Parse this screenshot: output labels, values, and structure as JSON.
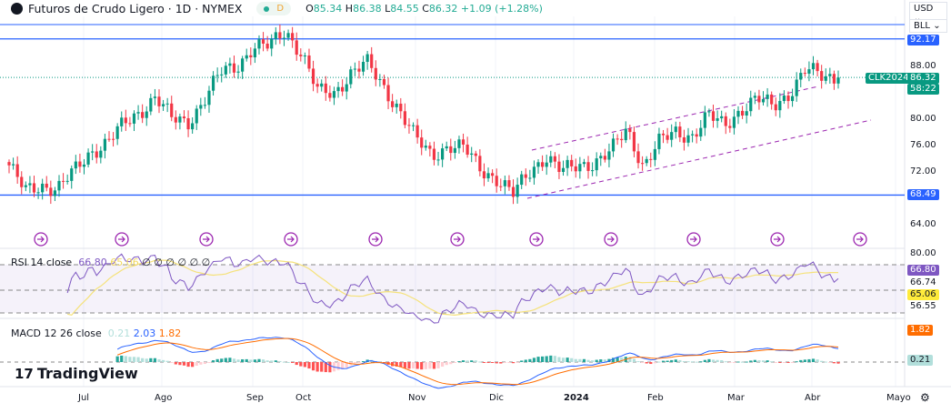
{
  "header": {
    "symbol_title": "Futuros de Crudo Ligero · 1D · NYMEX",
    "interval_badge": "D",
    "open_label": "O",
    "open": "85.34",
    "high_label": "H",
    "high": "86.38",
    "low_label": "L",
    "low": "84.55",
    "close_label": "C",
    "close": "86.32",
    "change": "+1.09 (+1.28%)"
  },
  "currency_menu": {
    "currency": "USD",
    "unit": "BLL"
  },
  "rsi": {
    "label": "RSI 14 close",
    "value": "66.80",
    "ma_value": "65.06",
    "na_values": [
      "∅",
      "∅",
      "∅",
      "∅",
      "∅",
      "∅"
    ]
  },
  "macd": {
    "label": "MACD 12 26 close",
    "histogram": "0.21",
    "macd": "2.03",
    "signal": "1.82"
  },
  "price_axis": {
    "labels": [
      "88.00",
      "80.00",
      "76.00",
      "72.00",
      "64.00"
    ],
    "level_upper": "92.17",
    "level_lower": "68.49",
    "symbol_tag": "CLK2024",
    "last_price": "86.32",
    "countdown": "58:22"
  },
  "rsi_axis": {
    "labels": [
      "80.00",
      "66.74",
      "56.55"
    ],
    "rsi_tag": "66.80",
    "ma_tag": "65.06"
  },
  "macd_axis": {
    "signal_tag": "1.82",
    "hist_tag": "0.21"
  },
  "time_axis": [
    "Jul",
    "Ago",
    "Sep",
    "Oct",
    "Nov",
    "Dic",
    "2024",
    "Feb",
    "Mar",
    "Abr",
    "Mayo"
  ],
  "logo": "TradingView",
  "colors": {
    "up": "#089981",
    "down": "#f23645",
    "level_line": "#2962ff",
    "rsi": "#7e57c2",
    "rsi_ma": "#f5e27a",
    "macd": "#2962ff",
    "signal": "#ff6d00",
    "channel": "#9c27b0"
  },
  "chart_data": {
    "type": "candlestick",
    "title": "Futuros de Crudo Ligero · 1D · NYMEX",
    "ylim": [
      62,
      97
    ],
    "y_ticks": [
      64,
      72,
      76,
      80,
      88
    ],
    "x_ticks": [
      "Jul",
      "Ago",
      "Sep",
      "Oct",
      "Nov",
      "Dic",
      "2024",
      "Feb",
      "Mar",
      "Abr",
      "Mayo"
    ],
    "approx_close_path": [
      73,
      69,
      70,
      69.5,
      72,
      75,
      76.5,
      79,
      81,
      83.5,
      80,
      79.5,
      83,
      87,
      88,
      91,
      91,
      93.5,
      90,
      84,
      84,
      87,
      88.5,
      85,
      81.5,
      77,
      74.5,
      76,
      75.5,
      72.5,
      71,
      68.5,
      72,
      74.5,
      72,
      73,
      73.5,
      75,
      78.5,
      73,
      76.5,
      78,
      77.5,
      80.5,
      79,
      81.5,
      83,
      82,
      84,
      87.5,
      86.5,
      86.32
    ],
    "horizontal_levels": [
      92.17,
      68.49
    ],
    "last": 86.32
  }
}
